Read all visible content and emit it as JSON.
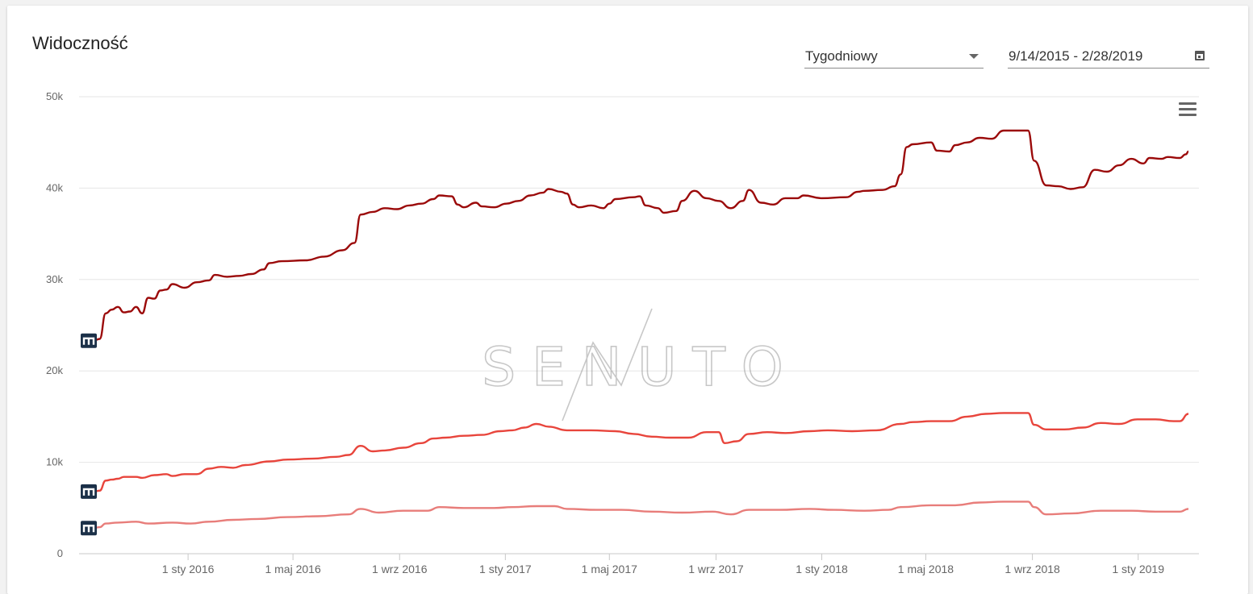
{
  "title": "Widoczność",
  "controls": {
    "interval_value": "Tygodniowy",
    "date_range": "9/14/2015 - 2/28/2019"
  },
  "icons": {
    "dropdown": "chevron-down-icon",
    "calendar": "calendar-icon",
    "menu": "hamburger-menu-icon",
    "marker": "m-logo-icon"
  },
  "watermark": "SENUTO",
  "chart_data": {
    "type": "line",
    "title": "",
    "xlabel": "",
    "ylabel": "",
    "x_range": [
      "2015-09-14",
      "2019-02-28"
    ],
    "ylim": [
      0,
      50000
    ],
    "y_ticks": [
      {
        "value": 0,
        "label": "0"
      },
      {
        "value": 10000,
        "label": "10k"
      },
      {
        "value": 20000,
        "label": "20k"
      },
      {
        "value": 30000,
        "label": "30k"
      },
      {
        "value": 40000,
        "label": "40k"
      },
      {
        "value": 50000,
        "label": "50k"
      }
    ],
    "x_ticks": [
      {
        "date": "2016-01-01",
        "label": "1 sty 2016"
      },
      {
        "date": "2016-05-01",
        "label": "1 maj 2016"
      },
      {
        "date": "2016-09-01",
        "label": "1 wrz 2016"
      },
      {
        "date": "2017-01-01",
        "label": "1 sty 2017"
      },
      {
        "date": "2017-05-01",
        "label": "1 maj 2017"
      },
      {
        "date": "2017-09-01",
        "label": "1 wrz 2017"
      },
      {
        "date": "2018-01-01",
        "label": "1 sty 2018"
      },
      {
        "date": "2018-05-01",
        "label": "1 maj 2018"
      },
      {
        "date": "2018-09-01",
        "label": "1 wrz 2018"
      },
      {
        "date": "2019-01-01",
        "label": "1 sty 2019"
      }
    ],
    "grid": true,
    "legend": "none",
    "series": [
      {
        "color": "#9b0a0a",
        "points": [
          [
            "2015-09-14",
            23300
          ],
          [
            "2015-09-21",
            23500
          ],
          [
            "2015-09-28",
            26300
          ],
          [
            "2015-10-05",
            26700
          ],
          [
            "2015-10-12",
            27000
          ],
          [
            "2015-10-19",
            26400
          ],
          [
            "2015-10-26",
            26500
          ],
          [
            "2015-11-02",
            27000
          ],
          [
            "2015-11-09",
            26300
          ],
          [
            "2015-11-16",
            28000
          ],
          [
            "2015-11-23",
            27900
          ],
          [
            "2015-11-30",
            28800
          ],
          [
            "2015-12-07",
            28900
          ],
          [
            "2015-12-14",
            29500
          ],
          [
            "2015-12-28",
            29100
          ],
          [
            "2016-01-11",
            29700
          ],
          [
            "2016-01-25",
            29900
          ],
          [
            "2016-02-01",
            30500
          ],
          [
            "2016-02-15",
            30300
          ],
          [
            "2016-02-29",
            30400
          ],
          [
            "2016-03-14",
            30600
          ],
          [
            "2016-03-28",
            31100
          ],
          [
            "2016-04-04",
            31800
          ],
          [
            "2016-04-18",
            32000
          ],
          [
            "2016-05-16",
            32100
          ],
          [
            "2016-06-06",
            32500
          ],
          [
            "2016-06-27",
            33200
          ],
          [
            "2016-07-11",
            34000
          ],
          [
            "2016-07-18",
            37100
          ],
          [
            "2016-08-01",
            37400
          ],
          [
            "2016-08-15",
            37800
          ],
          [
            "2016-08-29",
            37700
          ],
          [
            "2016-09-12",
            38100
          ],
          [
            "2016-09-26",
            38300
          ],
          [
            "2016-10-10",
            38800
          ],
          [
            "2016-10-17",
            39200
          ],
          [
            "2016-10-31",
            39100
          ],
          [
            "2016-11-07",
            38200
          ],
          [
            "2016-11-14",
            37900
          ],
          [
            "2016-11-28",
            38400
          ],
          [
            "2016-12-05",
            38000
          ],
          [
            "2016-12-19",
            37900
          ],
          [
            "2017-01-02",
            38300
          ],
          [
            "2017-01-16",
            38600
          ],
          [
            "2017-01-30",
            39200
          ],
          [
            "2017-02-13",
            39500
          ],
          [
            "2017-02-20",
            39900
          ],
          [
            "2017-03-06",
            39600
          ],
          [
            "2017-03-13",
            39400
          ],
          [
            "2017-03-20",
            38200
          ],
          [
            "2017-03-27",
            37900
          ],
          [
            "2017-04-10",
            38100
          ],
          [
            "2017-04-24",
            37800
          ],
          [
            "2017-05-01",
            38300
          ],
          [
            "2017-05-08",
            38800
          ],
          [
            "2017-05-29",
            39000
          ],
          [
            "2017-06-05",
            39100
          ],
          [
            "2017-06-12",
            38100
          ],
          [
            "2017-06-26",
            37800
          ],
          [
            "2017-07-03",
            37300
          ],
          [
            "2017-07-17",
            37500
          ],
          [
            "2017-07-24",
            38600
          ],
          [
            "2017-08-07",
            39700
          ],
          [
            "2017-08-21",
            38900
          ],
          [
            "2017-09-04",
            38600
          ],
          [
            "2017-09-18",
            37800
          ],
          [
            "2017-10-02",
            38600
          ],
          [
            "2017-10-09",
            39800
          ],
          [
            "2017-10-23",
            38400
          ],
          [
            "2017-11-06",
            38200
          ],
          [
            "2017-11-20",
            38900
          ],
          [
            "2017-12-04",
            38900
          ],
          [
            "2017-12-11",
            39200
          ],
          [
            "2018-01-01",
            38900
          ],
          [
            "2018-01-29",
            39000
          ],
          [
            "2018-02-12",
            39600
          ],
          [
            "2018-02-19",
            39700
          ],
          [
            "2018-03-12",
            39800
          ],
          [
            "2018-03-26",
            40200
          ],
          [
            "2018-04-02",
            41500
          ],
          [
            "2018-04-09",
            44500
          ],
          [
            "2018-04-16",
            44800
          ],
          [
            "2018-05-07",
            45000
          ],
          [
            "2018-05-14",
            44100
          ],
          [
            "2018-05-28",
            44000
          ],
          [
            "2018-06-04",
            44700
          ],
          [
            "2018-06-18",
            45000
          ],
          [
            "2018-07-02",
            45500
          ],
          [
            "2018-07-16",
            45400
          ],
          [
            "2018-07-30",
            46300
          ],
          [
            "2018-08-13",
            46300
          ],
          [
            "2018-08-27",
            46300
          ],
          [
            "2018-09-03",
            43000
          ],
          [
            "2018-09-17",
            40300
          ],
          [
            "2018-10-01",
            40200
          ],
          [
            "2018-10-15",
            39900
          ],
          [
            "2018-10-29",
            40100
          ],
          [
            "2018-11-12",
            42000
          ],
          [
            "2018-11-26",
            41800
          ],
          [
            "2018-12-10",
            42500
          ],
          [
            "2018-12-24",
            43200
          ],
          [
            "2019-01-07",
            42700
          ],
          [
            "2019-01-14",
            43300
          ],
          [
            "2019-01-28",
            43200
          ],
          [
            "2019-02-04",
            43400
          ],
          [
            "2019-02-18",
            43300
          ],
          [
            "2019-02-25",
            43700
          ],
          [
            "2019-02-28",
            44000
          ]
        ]
      },
      {
        "color": "#e8453c",
        "points": [
          [
            "2015-09-14",
            6800
          ],
          [
            "2015-09-21",
            6900
          ],
          [
            "2015-09-28",
            8000
          ],
          [
            "2015-10-05",
            8100
          ],
          [
            "2015-10-12",
            8200
          ],
          [
            "2015-10-19",
            8400
          ],
          [
            "2015-11-02",
            8400
          ],
          [
            "2015-11-09",
            8300
          ],
          [
            "2015-11-23",
            8600
          ],
          [
            "2015-12-07",
            8700
          ],
          [
            "2015-12-14",
            8500
          ],
          [
            "2015-12-28",
            8700
          ],
          [
            "2016-01-11",
            8700
          ],
          [
            "2016-01-25",
            9300
          ],
          [
            "2016-02-08",
            9500
          ],
          [
            "2016-02-22",
            9400
          ],
          [
            "2016-03-07",
            9700
          ],
          [
            "2016-04-04",
            10100
          ],
          [
            "2016-04-25",
            10300
          ],
          [
            "2016-05-23",
            10400
          ],
          [
            "2016-06-20",
            10600
          ],
          [
            "2016-07-04",
            10800
          ],
          [
            "2016-07-18",
            11800
          ],
          [
            "2016-08-01",
            11200
          ],
          [
            "2016-08-15",
            11300
          ],
          [
            "2016-09-05",
            11600
          ],
          [
            "2016-09-26",
            12100
          ],
          [
            "2016-10-10",
            12600
          ],
          [
            "2016-10-24",
            12700
          ],
          [
            "2016-11-14",
            12900
          ],
          [
            "2016-12-05",
            13000
          ],
          [
            "2016-12-26",
            13400
          ],
          [
            "2017-01-09",
            13500
          ],
          [
            "2017-01-23",
            13800
          ],
          [
            "2017-02-06",
            14200
          ],
          [
            "2017-02-20",
            13900
          ],
          [
            "2017-03-13",
            13500
          ],
          [
            "2017-04-10",
            13500
          ],
          [
            "2017-05-08",
            13400
          ],
          [
            "2017-05-29",
            13100
          ],
          [
            "2017-06-19",
            12800
          ],
          [
            "2017-07-10",
            12700
          ],
          [
            "2017-07-31",
            12700
          ],
          [
            "2017-08-21",
            13300
          ],
          [
            "2017-09-04",
            13300
          ],
          [
            "2017-09-11",
            12100
          ],
          [
            "2017-09-25",
            12300
          ],
          [
            "2017-10-09",
            13100
          ],
          [
            "2017-10-30",
            13300
          ],
          [
            "2017-11-20",
            13200
          ],
          [
            "2017-12-18",
            13400
          ],
          [
            "2018-01-08",
            13500
          ],
          [
            "2018-02-05",
            13400
          ],
          [
            "2018-03-05",
            13500
          ],
          [
            "2018-04-02",
            14200
          ],
          [
            "2018-04-16",
            14400
          ],
          [
            "2018-05-07",
            14500
          ],
          [
            "2018-05-28",
            14500
          ],
          [
            "2018-06-18",
            15000
          ],
          [
            "2018-07-09",
            15300
          ],
          [
            "2018-07-30",
            15400
          ],
          [
            "2018-08-27",
            15400
          ],
          [
            "2018-09-03",
            14100
          ],
          [
            "2018-09-17",
            13600
          ],
          [
            "2018-10-08",
            13600
          ],
          [
            "2018-10-29",
            13800
          ],
          [
            "2018-11-19",
            14300
          ],
          [
            "2018-12-10",
            14200
          ],
          [
            "2018-12-31",
            14700
          ],
          [
            "2019-01-21",
            14700
          ],
          [
            "2019-02-11",
            14500
          ],
          [
            "2019-02-18",
            14500
          ],
          [
            "2019-02-28",
            15300
          ]
        ]
      },
      {
        "color": "#e87d7a",
        "points": [
          [
            "2015-09-14",
            2800
          ],
          [
            "2015-09-21",
            2900
          ],
          [
            "2015-09-28",
            3300
          ],
          [
            "2015-10-12",
            3400
          ],
          [
            "2015-11-02",
            3500
          ],
          [
            "2015-11-16",
            3300
          ],
          [
            "2015-12-14",
            3400
          ],
          [
            "2016-01-04",
            3300
          ],
          [
            "2016-01-25",
            3500
          ],
          [
            "2016-02-22",
            3700
          ],
          [
            "2016-03-21",
            3800
          ],
          [
            "2016-04-25",
            4000
          ],
          [
            "2016-05-30",
            4100
          ],
          [
            "2016-07-04",
            4300
          ],
          [
            "2016-07-18",
            4900
          ],
          [
            "2016-08-08",
            4500
          ],
          [
            "2016-09-05",
            4700
          ],
          [
            "2016-10-03",
            4700
          ],
          [
            "2016-10-17",
            5100
          ],
          [
            "2016-11-14",
            5000
          ],
          [
            "2016-12-19",
            5000
          ],
          [
            "2017-01-09",
            5100
          ],
          [
            "2017-02-06",
            5200
          ],
          [
            "2017-02-27",
            5200
          ],
          [
            "2017-03-13",
            4900
          ],
          [
            "2017-04-17",
            4800
          ],
          [
            "2017-05-15",
            4800
          ],
          [
            "2017-06-19",
            4600
          ],
          [
            "2017-07-24",
            4500
          ],
          [
            "2017-08-28",
            4600
          ],
          [
            "2017-09-18",
            4300
          ],
          [
            "2017-10-09",
            4800
          ],
          [
            "2017-11-13",
            4800
          ],
          [
            "2017-12-18",
            4900
          ],
          [
            "2018-01-15",
            4800
          ],
          [
            "2018-02-19",
            4700
          ],
          [
            "2018-03-19",
            4800
          ],
          [
            "2018-04-02",
            5100
          ],
          [
            "2018-05-07",
            5300
          ],
          [
            "2018-06-04",
            5300
          ],
          [
            "2018-07-02",
            5600
          ],
          [
            "2018-07-30",
            5700
          ],
          [
            "2018-08-27",
            5700
          ],
          [
            "2018-09-03",
            5100
          ],
          [
            "2018-09-17",
            4300
          ],
          [
            "2018-10-15",
            4400
          ],
          [
            "2018-11-19",
            4700
          ],
          [
            "2018-12-24",
            4700
          ],
          [
            "2019-01-21",
            4600
          ],
          [
            "2019-02-18",
            4600
          ],
          [
            "2019-02-28",
            4900
          ]
        ]
      }
    ]
  }
}
